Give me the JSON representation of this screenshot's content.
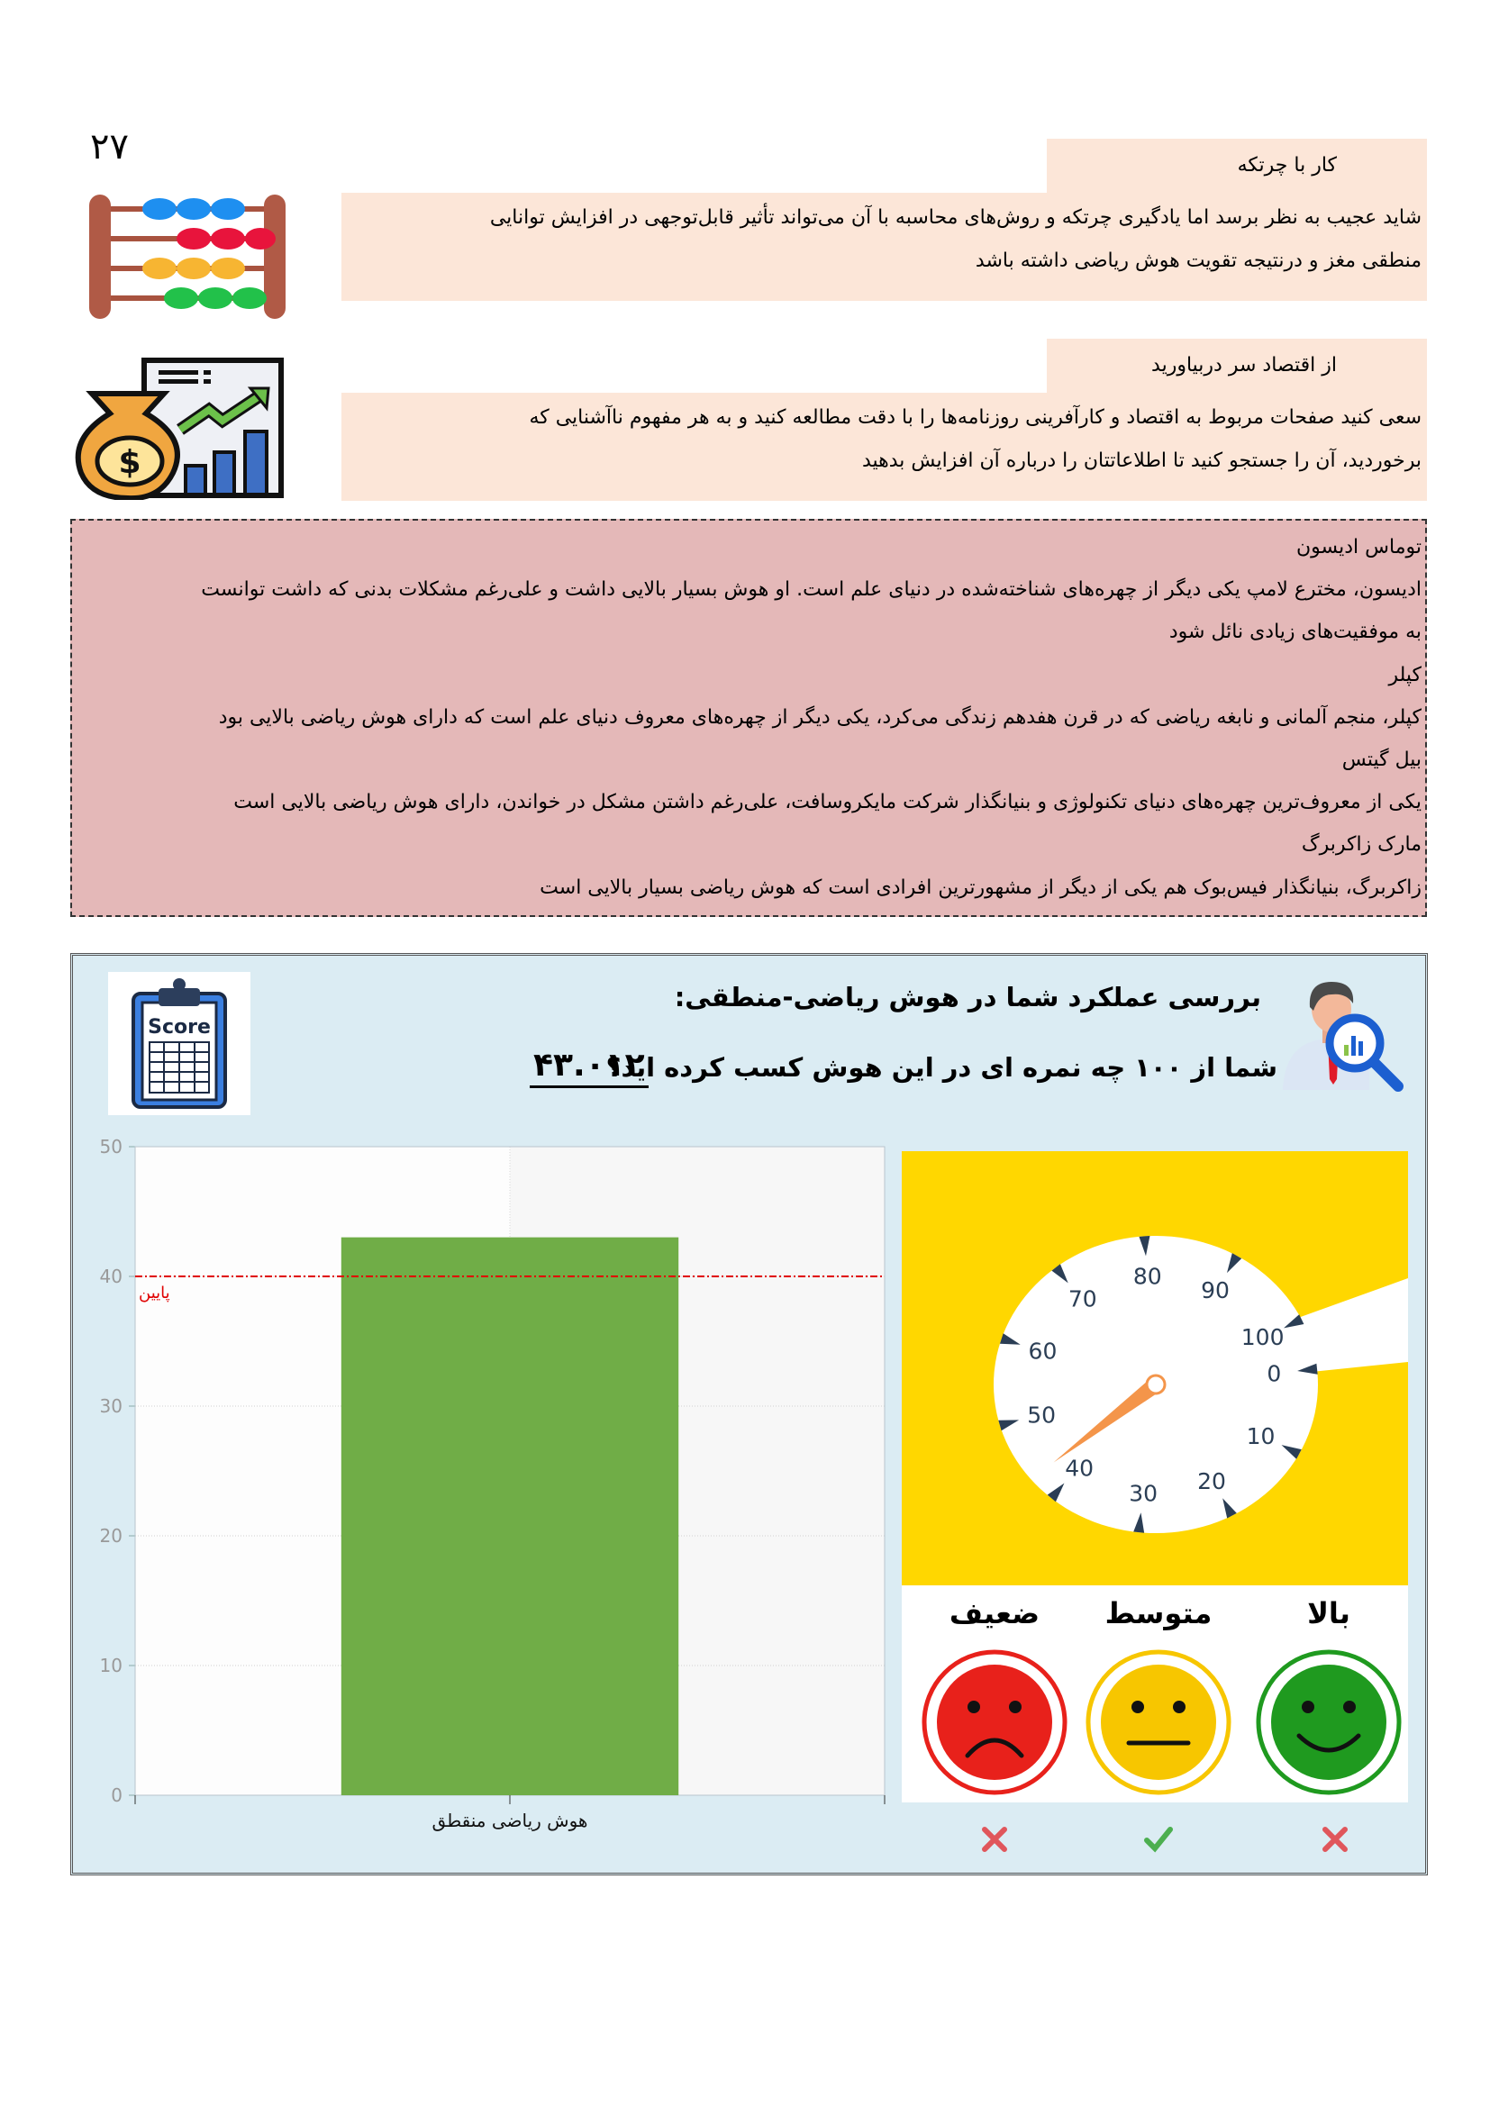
{
  "page_number": "۲۷",
  "tips": [
    {
      "title": "کار با چرتکه",
      "icon": "abacus-icon",
      "lines": [
        "شاید عجیب به نظر برسد اما یادگیری چرتکه و روش‌های محاسبه با آن می‌تواند تأثیر قابل‌توجهی در افزایش توانایی",
        "منطقی مغز و درنتیجه تقویت هوش ریاضی داشته باشد"
      ]
    },
    {
      "title": "از اقتصاد سر دربیاورید",
      "icon": "money-bag-chart-icon",
      "lines": [
        "سعی کنید صفحات مربوط به اقتصاد و کارآفرینی روزنامه‌ها را با دقت مطالعه کنید و به هر مفهوم ناآشنایی که",
        "برخوردید، آن را جستجو کنید تا اطلاعاتتان را درباره آن افزایش بدهید"
      ]
    }
  ],
  "famous_people": [
    "توماس ادیسون",
    "ادیسون، مخترع لامپ یکی دیگر از چهره‌های شناخته‌شده در دنیای علم است. او هوش بسیار بالایی داشت و علی‌رغم مشکلات بدنی که داشت توانست",
    "به موفقیت‌های زیادی نائل شود",
    "کپلر",
    "کپلر، منجم آلمانی و نابغه ریاضی که در قرن هفدهم زندگی می‌کرد، یکی دیگر از چهره‌های معروف دنیای علم است که دارای هوش ریاضی بالایی بود",
    "بیل گیتس",
    "یکی از معروف‌ترین چهره‌های دنیای تکنولوژی و بنیانگذار شرکت مایکروسافت، علی‌رغم داشتن مشکل در خواندن، دارای هوش ریاضی بالایی است",
    "مارک زاکربرگ",
    "زاکربرگ، بنیانگذار فیس‌بوک هم یکی از دیگر از مشهورترین افرادی است که هوش ریاضی بسیار بالایی است"
  ],
  "score_panel": {
    "title": "بررسی عملکرد شما در هوش ریاضی-منطقی:",
    "question": "شما از ۱۰۰ چه نمره ای در این هوش کسب کرده اید؟",
    "score": "۴۳.۰۱۲",
    "score_icon_text": "Score",
    "background": "#dbecf3"
  },
  "chart_data": {
    "type": "bar",
    "categories": [
      "هوش ریاضی منقطق"
    ],
    "values": [
      43.012
    ],
    "ylim": [
      0,
      50
    ],
    "yticks": [
      "0",
      "10",
      "20",
      "30",
      "40",
      "50"
    ],
    "grid": true,
    "bar_color": "#70ad47",
    "threshold": {
      "value": 40,
      "label": "پایین",
      "color": "#e00000"
    }
  },
  "gauge": {
    "value": 43.012,
    "labels": [
      "0",
      "10",
      "20",
      "30",
      "40",
      "50",
      "60",
      "70",
      "80",
      "90",
      "100"
    ],
    "background": "#ffd700",
    "needle_color": "#f4954a"
  },
  "levels": [
    {
      "label": "بالا",
      "face": "happy-face-icon",
      "color": "#1f9a1f",
      "status": "cross"
    },
    {
      "label": "متوسط",
      "face": "neutral-face-icon",
      "color": "#f7c600",
      "status": "check"
    },
    {
      "label": "ضعیف",
      "face": "sad-face-icon",
      "color": "#e8211b",
      "status": "cross"
    }
  ]
}
